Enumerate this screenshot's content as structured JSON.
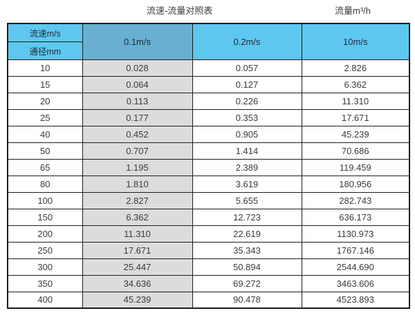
{
  "titles": {
    "left": "流速-流量对照表",
    "right": "流量m³/h"
  },
  "table": {
    "corner_top": "流速m/s",
    "corner_bottom": "通径mm",
    "columns": [
      "0.1m/s",
      "0.2m/s",
      "10m/s"
    ],
    "rows": [
      {
        "dn": "10",
        "v1": "0.028",
        "v2": "0.057",
        "v3": "2.826"
      },
      {
        "dn": "15",
        "v1": "0.064",
        "v2": "0.127",
        "v3": "6.362"
      },
      {
        "dn": "20",
        "v1": "0.113",
        "v2": "0.226",
        "v3": "11.310"
      },
      {
        "dn": "25",
        "v1": "0.177",
        "v2": "0.353",
        "v3": "17.671"
      },
      {
        "dn": "40",
        "v1": "0.452",
        "v2": "0.905",
        "v3": "45.239"
      },
      {
        "dn": "50",
        "v1": "0.707",
        "v2": "1.414",
        "v3": "70.686"
      },
      {
        "dn": "65",
        "v1": "1.195",
        "v2": "2.389",
        "v3": "119.459"
      },
      {
        "dn": "80",
        "v1": "1.810",
        "v2": "3.619",
        "v3": "180.956"
      },
      {
        "dn": "100",
        "v1": "2.827",
        "v2": "5.655",
        "v3": "282.743"
      },
      {
        "dn": "150",
        "v1": "6.362",
        "v2": "12.723",
        "v3": "636.173"
      },
      {
        "dn": "200",
        "v1": "11.310",
        "v2": "22.619",
        "v3": "1130.973"
      },
      {
        "dn": "250",
        "v1": "17.671",
        "v2": "35.343",
        "v3": "1767.146"
      },
      {
        "dn": "300",
        "v1": "25.447",
        "v2": "50.894",
        "v3": "2544.690"
      },
      {
        "dn": "350",
        "v1": "34.636",
        "v2": "69.272",
        "v3": "3463.606"
      },
      {
        "dn": "400",
        "v1": "45.239",
        "v2": "90.478",
        "v3": "4523.893"
      }
    ]
  },
  "colors": {
    "header_blue": "#5EC7F0",
    "header_blue_dark": "#68AFD2",
    "grey_column": "#DCDCDC",
    "border": "#1C1C1C",
    "text": "#3A3A3A"
  },
  "chart_data": {
    "type": "table",
    "title": "流速-流量对照表",
    "value_unit": "流量m³/h",
    "row_header": "通径mm",
    "column_header": "流速m/s",
    "columns": [
      "0.1m/s",
      "0.2m/s",
      "10m/s"
    ],
    "categories": [
      10,
      15,
      20,
      25,
      40,
      50,
      65,
      80,
      100,
      150,
      200,
      250,
      300,
      350,
      400
    ],
    "series": [
      {
        "name": "0.1m/s",
        "values": [
          0.028,
          0.064,
          0.113,
          0.177,
          0.452,
          0.707,
          1.195,
          1.81,
          2.827,
          6.362,
          11.31,
          17.671,
          25.447,
          34.636,
          45.239
        ]
      },
      {
        "name": "0.2m/s",
        "values": [
          0.057,
          0.127,
          0.226,
          0.353,
          0.905,
          1.414,
          2.389,
          3.619,
          5.655,
          12.723,
          22.619,
          35.343,
          50.894,
          69.272,
          90.478
        ]
      },
      {
        "name": "10m/s",
        "values": [
          2.826,
          6.362,
          11.31,
          17.671,
          45.239,
          70.686,
          119.459,
          180.956,
          282.743,
          636.173,
          1130.973,
          1767.146,
          2544.69,
          3463.606,
          4523.893
        ]
      }
    ]
  }
}
